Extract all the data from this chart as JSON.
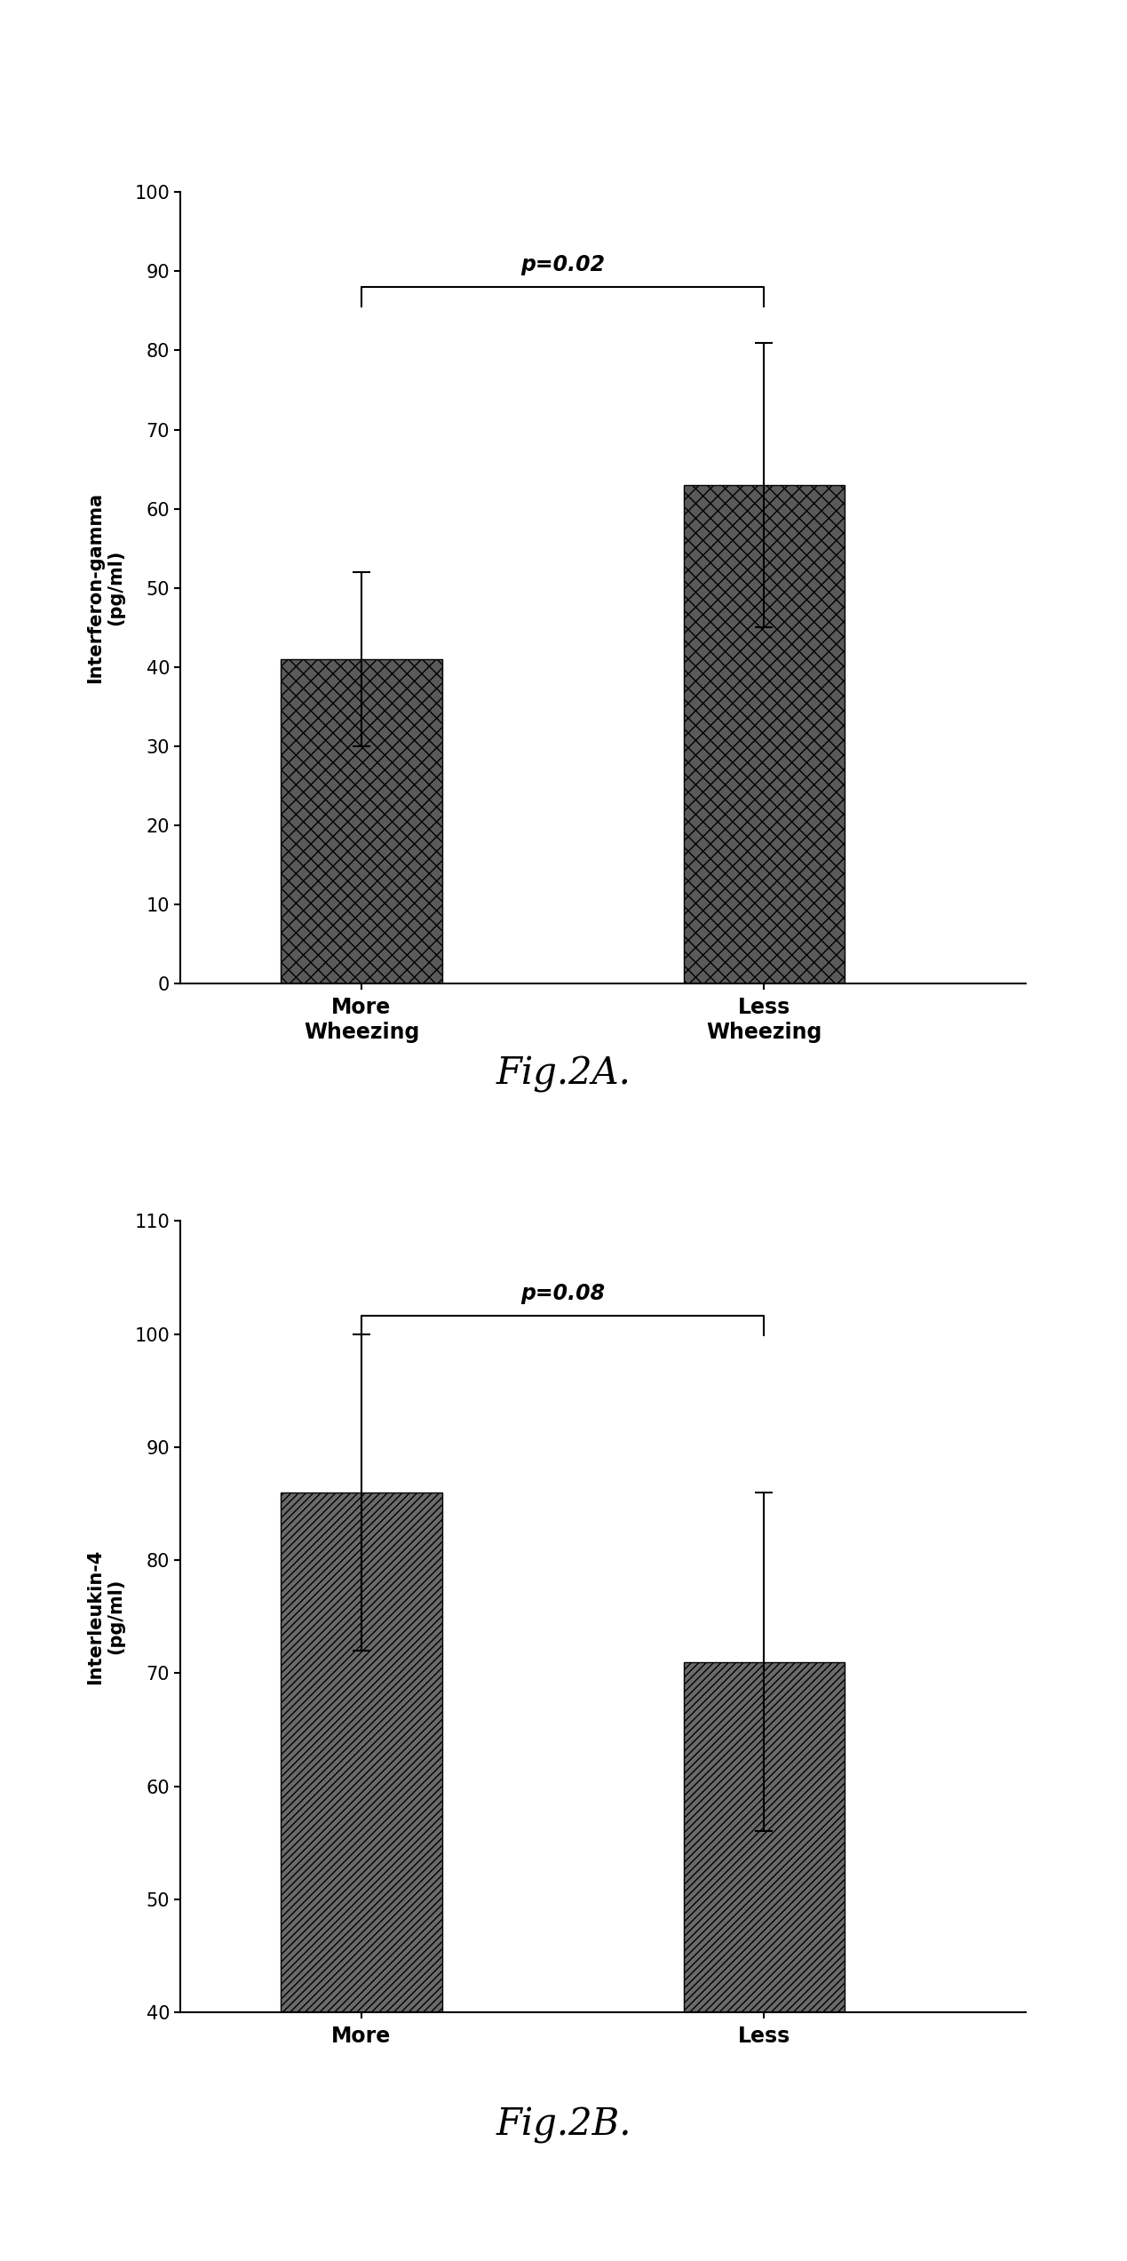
{
  "fig2a": {
    "categories": [
      "More\nWheezing",
      "Less\nWheezing"
    ],
    "values": [
      41,
      63
    ],
    "errors": [
      11,
      18
    ],
    "ylabel": "Interferon-gamma\n(pg/ml)",
    "ylim": [
      0,
      100
    ],
    "yticks": [
      0,
      10,
      20,
      30,
      40,
      50,
      60,
      70,
      80,
      90,
      100
    ],
    "pvalue": "p=0.02",
    "figlabel": "Fig.2A.",
    "bar_color": "#5a5a5a",
    "hatch": "xx",
    "bar_width": 0.4
  },
  "fig2b": {
    "categories": [
      "More",
      "Less"
    ],
    "values": [
      86,
      71
    ],
    "errors": [
      14,
      15
    ],
    "ylabel": "Interleukin-4\n(pg/ml)",
    "ylim": [
      40,
      110
    ],
    "yticks": [
      40,
      50,
      60,
      70,
      80,
      90,
      100,
      110
    ],
    "pvalue": "p=0.08",
    "figlabel": "Fig.2B.",
    "bar_color": "#6a6a6a",
    "hatch": "////",
    "bar_width": 0.4
  }
}
